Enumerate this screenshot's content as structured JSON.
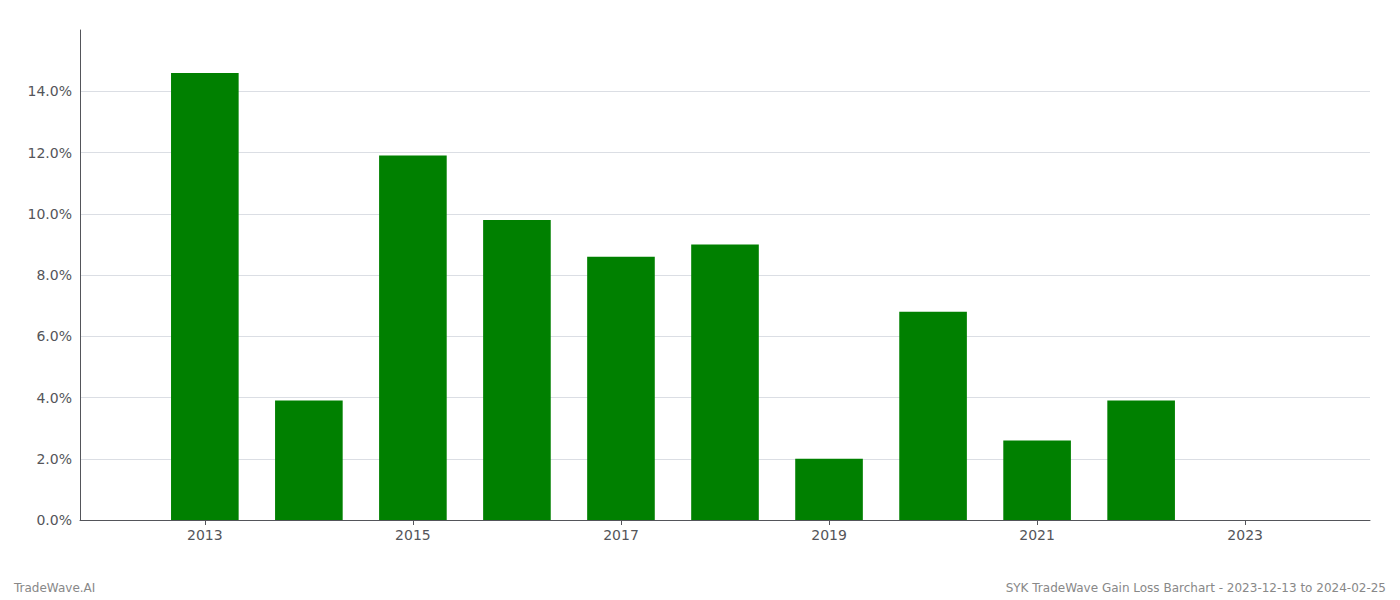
{
  "chart_data": {
    "type": "bar",
    "x": [
      2013,
      2014,
      2015,
      2016,
      2017,
      2018,
      2019,
      2020,
      2021,
      2022,
      2023
    ],
    "values": [
      0.146,
      0.039,
      0.119,
      0.098,
      0.086,
      0.09,
      0.02,
      0.068,
      0.026,
      0.039,
      0.0
    ],
    "color": "#008000",
    "xlim": [
      2011.8,
      2024.2
    ],
    "xticks": [
      2013,
      2015,
      2017,
      2019,
      2021,
      2023
    ],
    "ylim": [
      0,
      0.16
    ],
    "yticks": [
      {
        "value": 0.0,
        "label": "0.0%"
      },
      {
        "value": 0.02,
        "label": "2.0%"
      },
      {
        "value": 0.04,
        "label": "4.0%"
      },
      {
        "value": 0.06,
        "label": "6.0%"
      },
      {
        "value": 0.08,
        "label": "8.0%"
      },
      {
        "value": 0.1,
        "label": "10.0%"
      },
      {
        "value": 0.12,
        "label": "12.0%"
      },
      {
        "value": 0.14,
        "label": "14.0%"
      }
    ],
    "grid": true,
    "annotations": [
      "TradeWave.AI",
      "SYK TradeWave Gain Loss Barchart - 2023-12-13 to 2024-02-25"
    ]
  }
}
